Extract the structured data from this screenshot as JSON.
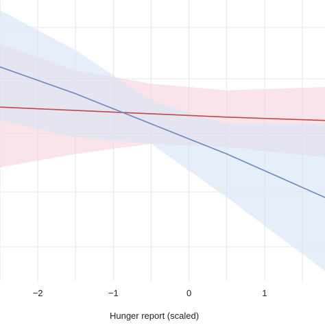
{
  "chart_data": {
    "type": "line",
    "title": "",
    "xlabel": "Hunger report (scaled)",
    "ylabel": "",
    "xlim": [
      -2.5,
      1.8
    ],
    "x_ticks": [
      -2,
      -1,
      0,
      1
    ],
    "x_tick_labels": [
      "−2",
      "−1",
      "0",
      "1"
    ],
    "grid": true,
    "series": [
      {
        "color": "#e2bcc6",
        "band_color": "#f5d4da",
        "line_color": "#c24848",
        "x": [
          -2.5,
          -1.5,
          -0.5,
          0.5,
          1.8
        ],
        "y": [
          0.0,
          -0.05,
          -0.1,
          -0.15,
          -0.2
        ],
        "lower": [
          -0.9,
          -0.7,
          -0.55,
          -0.6,
          -0.75
        ],
        "upper": [
          0.95,
          0.55,
          0.35,
          0.25,
          0.3
        ]
      },
      {
        "color": "#b9cde8",
        "band_color": "#d6e4f5",
        "line_color": "#6b86c0",
        "x": [
          -2.5,
          -1.5,
          -0.5,
          0.5,
          1.8
        ],
        "y": [
          0.6,
          0.2,
          -0.25,
          -0.7,
          -1.35
        ],
        "lower": [
          -0.2,
          -0.45,
          -0.55,
          -1.35,
          -2.45
        ],
        "upper": [
          1.45,
          0.85,
          0.1,
          -0.25,
          -0.25
        ]
      }
    ]
  }
}
